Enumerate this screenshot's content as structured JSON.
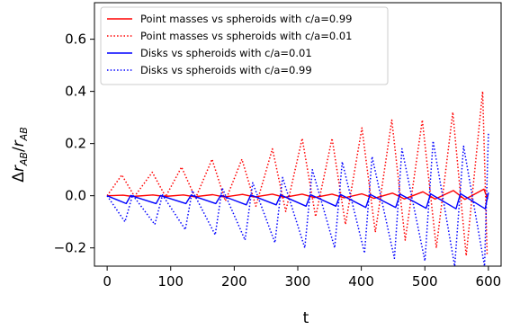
{
  "chart_data": {
    "type": "line",
    "xlabel": "t",
    "ylabel": "Δr_AB/r_AB",
    "xlim": [
      -20,
      620
    ],
    "ylim": [
      -0.27,
      0.74
    ],
    "xticks": [
      {
        "value": 0,
        "label": "0"
      },
      {
        "value": 100,
        "label": "100"
      },
      {
        "value": 200,
        "label": "200"
      },
      {
        "value": 300,
        "label": "300"
      },
      {
        "value": 400,
        "label": "400"
      },
      {
        "value": 500,
        "label": "500"
      },
      {
        "value": 600,
        "label": "600"
      }
    ],
    "yticks": [
      {
        "value": -0.2,
        "label": "−0.2"
      },
      {
        "value": 0.0,
        "label": "0.0"
      },
      {
        "value": 0.2,
        "label": "0.2"
      },
      {
        "value": 0.4,
        "label": "0.4"
      },
      {
        "value": 0.6,
        "label": "0.6"
      }
    ],
    "grid": false,
    "legend_position": "top-left",
    "series": [
      {
        "name": "Point masses vs spheroids with c/a=0.99",
        "color": "#ff0000",
        "style": "solid",
        "peaks": [
          [
            25,
            0.002
          ],
          [
            72,
            0.003
          ],
          [
            120,
            0.003
          ],
          [
            166,
            0.004
          ],
          [
            213,
            0.005
          ],
          [
            260,
            0.006
          ],
          [
            307,
            0.006
          ],
          [
            354,
            0.006
          ],
          [
            401,
            0.007
          ],
          [
            449,
            0.01
          ],
          [
            497,
            0.015
          ],
          [
            545,
            0.02
          ],
          [
            593,
            0.025
          ]
        ],
        "troughs": [
          [
            40,
            -0.003
          ],
          [
            90,
            -0.003
          ],
          [
            137,
            -0.004
          ],
          [
            184,
            -0.005
          ],
          [
            232,
            -0.005
          ],
          [
            279,
            -0.006
          ],
          [
            326,
            -0.007
          ],
          [
            373,
            -0.008
          ],
          [
            420,
            -0.01
          ],
          [
            468,
            -0.012
          ],
          [
            516,
            -0.013
          ],
          [
            563,
            -0.014
          ],
          [
            599,
            -0.013
          ]
        ]
      },
      {
        "name": "Point masses vs spheroids with c/a=0.01",
        "color": "#ff0000",
        "style": "dotted",
        "peaks": [
          [
            23,
            0.08
          ],
          [
            71,
            0.09
          ],
          [
            117,
            0.11
          ],
          [
            165,
            0.14
          ],
          [
            212,
            0.14
          ],
          [
            260,
            0.18
          ],
          [
            307,
            0.22
          ],
          [
            354,
            0.22
          ],
          [
            401,
            0.26
          ],
          [
            448,
            0.29
          ],
          [
            496,
            0.29
          ],
          [
            544,
            0.32
          ],
          [
            591,
            0.4
          ]
        ],
        "troughs": [
          [
            43,
            -0.003
          ],
          [
            92,
            -0.004
          ],
          [
            139,
            -0.01
          ],
          [
            186,
            -0.02
          ],
          [
            234,
            -0.04
          ],
          [
            281,
            -0.06
          ],
          [
            328,
            -0.08
          ],
          [
            375,
            -0.11
          ],
          [
            422,
            -0.14
          ],
          [
            469,
            -0.17
          ],
          [
            518,
            -0.2
          ],
          [
            565,
            -0.23
          ],
          [
            598,
            -0.23
          ]
        ]
      },
      {
        "name": "Disks vs spheroids with c/a=0.01",
        "color": "#0000ff",
        "style": "solid",
        "peaks": [
          [
            37,
            0.001
          ],
          [
            84,
            0.001
          ],
          [
            132,
            0.002
          ],
          [
            179,
            0.002
          ],
          [
            226,
            0.003
          ],
          [
            273,
            0.003
          ],
          [
            320,
            0.004
          ],
          [
            367,
            0.005
          ],
          [
            414,
            0.005
          ],
          [
            461,
            0.006
          ],
          [
            509,
            0.007
          ],
          [
            556,
            0.008
          ],
          [
            600,
            0.012
          ]
        ],
        "troughs": [
          [
            30,
            -0.03
          ],
          [
            77,
            -0.03
          ],
          [
            124,
            -0.03
          ],
          [
            171,
            -0.03
          ],
          [
            219,
            -0.035
          ],
          [
            266,
            -0.035
          ],
          [
            313,
            -0.04
          ],
          [
            360,
            -0.04
          ],
          [
            407,
            -0.045
          ],
          [
            454,
            -0.045
          ],
          [
            502,
            -0.048
          ],
          [
            549,
            -0.05
          ],
          [
            595,
            -0.05
          ]
        ]
      },
      {
        "name": "Disks vs spheroids with c/a=0.99",
        "color": "#0000ff",
        "style": "dotted",
        "peaks": [
          [
            40,
            0.003
          ],
          [
            87,
            0.003
          ],
          [
            134,
            0.02
          ],
          [
            181,
            0.03
          ],
          [
            229,
            0.05
          ],
          [
            276,
            0.07
          ],
          [
            323,
            0.1
          ],
          [
            370,
            0.13
          ],
          [
            417,
            0.15
          ],
          [
            464,
            0.18
          ],
          [
            513,
            0.21
          ],
          [
            561,
            0.19
          ],
          [
            600,
            0.24
          ]
        ],
        "troughs": [
          [
            28,
            -0.1
          ],
          [
            75,
            -0.11
          ],
          [
            123,
            -0.13
          ],
          [
            170,
            -0.15
          ],
          [
            217,
            -0.17
          ],
          [
            264,
            -0.18
          ],
          [
            311,
            -0.2
          ],
          [
            358,
            -0.2
          ],
          [
            405,
            -0.22
          ],
          [
            452,
            -0.24
          ],
          [
            500,
            -0.25
          ],
          [
            547,
            -0.27
          ],
          [
            594,
            -0.27
          ]
        ]
      }
    ]
  }
}
